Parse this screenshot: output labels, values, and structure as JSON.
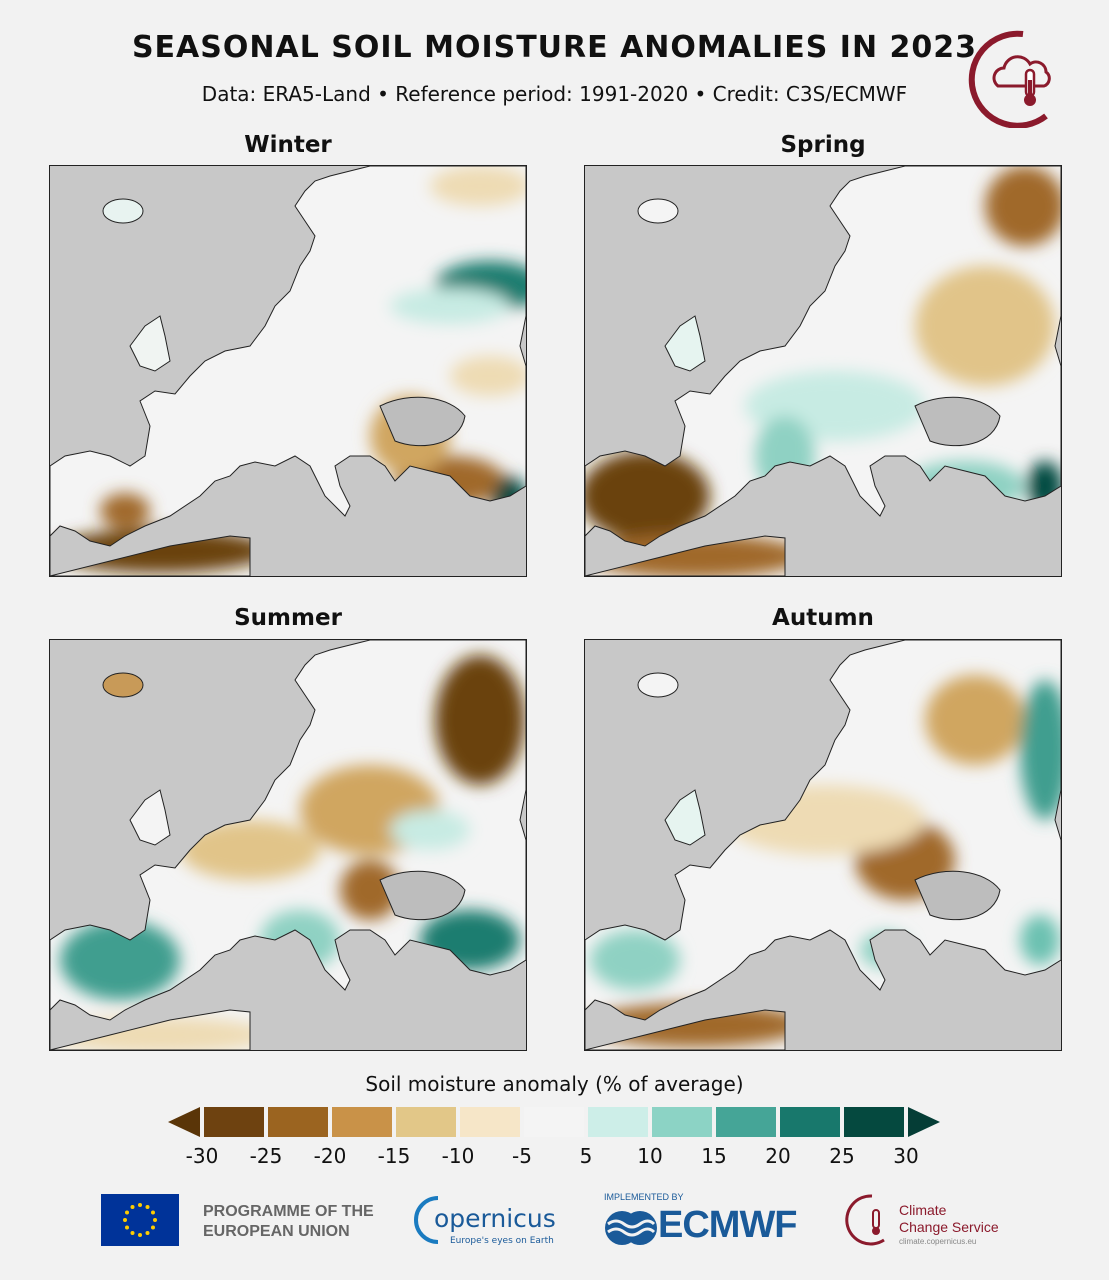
{
  "header": {
    "title": "SEASONAL SOIL MOISTURE ANOMALIES IN 2023",
    "subtitle": "Data: ERA5-Land • Reference period: 1991-2020 • Credit: C3S/ECMWF"
  },
  "panels": [
    {
      "label": "Winter",
      "description": "Mostly near-average; very dry north Africa and southern Iberia, dry Turkey; wet Caucasus and north-east"
    },
    {
      "label": "Spring",
      "description": "Very dry Iberia and north Africa; dry north-east; wetter than average central Europe and Balkans"
    },
    {
      "label": "Summer",
      "description": "Dry north-east Russia and central Europe; wet Iberia, Turkey and parts of Balkans"
    },
    {
      "label": "Autumn",
      "description": "Dry eastern Europe and north Africa; wet far north-east and Iberia"
    }
  ],
  "legend": {
    "title": "Soil moisture anomaly (% of average)",
    "ticks": [
      "-30",
      "-25",
      "-20",
      "-15",
      "-10",
      "-5",
      "5",
      "10",
      "15",
      "20",
      "25",
      "30"
    ],
    "colors": [
      "#5a3508",
      "#6e4210",
      "#9b6420",
      "#c99248",
      "#e2c788",
      "#f6e6c8",
      "#f4f4f4",
      "#cdeee8",
      "#8cd3c5",
      "#45a597",
      "#18786c",
      "#05493f",
      "#053d36"
    ]
  },
  "colors": {
    "land": "#f4f4f4",
    "sea": "#c8c8c8",
    "dry_extreme": "#6b420f",
    "dry_strong": "#a0692a",
    "dry_moderate": "#d0a661",
    "dry_light": "#eedbb4",
    "wet_light": "#c7ebe3",
    "wet_moderate": "#6cc1b1",
    "wet_strong": "#1d7d70",
    "wet_extreme": "#064a40"
  },
  "footer": {
    "eu_programme": "PROGRAMME OF THE EUROPEAN UNION",
    "copernicus_name": "opernicus",
    "copernicus_tagline": "Europe's eyes on Earth",
    "implemented_by": "IMPLEMENTED BY",
    "ecmwf": "ECMWF",
    "ccs_line1": "Climate",
    "ccs_line2": "Change Service",
    "ccs_url": "climate.copernicus.eu"
  }
}
